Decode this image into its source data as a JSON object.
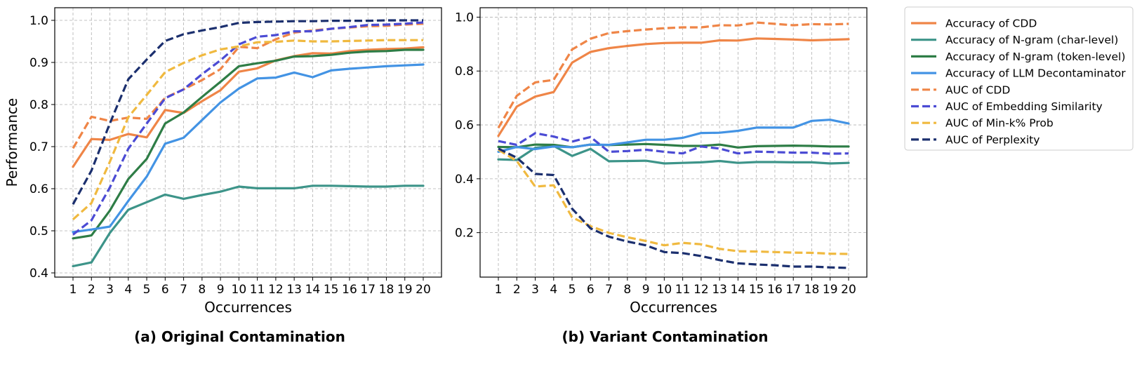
{
  "chart_data": [
    {
      "type": "line",
      "caption": "(a) Original Contamination",
      "xlabel": "Occurrences",
      "ylabel": "Performance",
      "x": [
        1,
        2,
        3,
        4,
        5,
        6,
        7,
        8,
        9,
        10,
        11,
        12,
        13,
        14,
        15,
        16,
        17,
        18,
        19,
        20
      ],
      "xticks": [
        "1",
        "2",
        "3",
        "4",
        "5",
        "6",
        "7",
        "8",
        "9",
        "10",
        "11",
        "12",
        "13",
        "14",
        "15",
        "16",
        "17",
        "18",
        "19",
        "20"
      ],
      "ylim": [
        0.39,
        1.03
      ],
      "yticks": [
        0.4,
        0.5,
        0.6,
        0.7,
        0.8,
        0.9,
        1.0
      ],
      "ytick_labels": [
        "0.4",
        "0.5",
        "0.6",
        "0.7",
        "0.8",
        "0.9",
        "1.0"
      ],
      "grid": true,
      "series": [
        {
          "name": "Accuracy of CDD",
          "color": "#ef8547",
          "style": "solid",
          "values": [
            0.652,
            0.718,
            0.716,
            0.73,
            0.722,
            0.787,
            0.78,
            0.808,
            0.834,
            0.878,
            0.886,
            0.905,
            0.915,
            0.922,
            0.921,
            0.927,
            0.93,
            0.932,
            0.933,
            0.936
          ]
        },
        {
          "name": "Accuracy of N-gram (char-level)",
          "color": "#3d9489",
          "style": "solid",
          "values": [
            0.416,
            0.425,
            0.495,
            0.55,
            0.568,
            0.586,
            0.576,
            0.585,
            0.593,
            0.605,
            0.601,
            0.601,
            0.601,
            0.607,
            0.607,
            0.606,
            0.605,
            0.605,
            0.607,
            0.607
          ]
        },
        {
          "name": "Accuracy of N-gram (token-level)",
          "color": "#2e7d46",
          "style": "solid",
          "values": [
            0.482,
            0.489,
            0.548,
            0.623,
            0.671,
            0.755,
            0.781,
            0.818,
            0.854,
            0.891,
            0.898,
            0.904,
            0.914,
            0.915,
            0.918,
            0.923,
            0.926,
            0.927,
            0.93,
            0.93
          ]
        },
        {
          "name": "Accuracy of LLM Decontaminator",
          "color": "#4393e4",
          "style": "solid",
          "values": [
            0.497,
            0.503,
            0.51,
            0.571,
            0.629,
            0.707,
            0.721,
            0.763,
            0.805,
            0.838,
            0.862,
            0.864,
            0.876,
            0.865,
            0.881,
            0.885,
            0.888,
            0.891,
            0.893,
            0.895
          ]
        },
        {
          "name": "AUC of CDD",
          "color": "#ef8547",
          "style": "dashed",
          "values": [
            0.696,
            0.771,
            0.761,
            0.769,
            0.766,
            0.816,
            0.836,
            0.858,
            0.884,
            0.937,
            0.934,
            0.955,
            0.971,
            0.976,
            0.98,
            0.983,
            0.986,
            0.987,
            0.99,
            0.992
          ]
        },
        {
          "name": "AUC of Embedding Similarity",
          "color": "#4b4bd4",
          "style": "dashed",
          "values": [
            0.491,
            0.525,
            0.603,
            0.695,
            0.755,
            0.815,
            0.836,
            0.872,
            0.905,
            0.943,
            0.961,
            0.965,
            0.974,
            0.974,
            0.98,
            0.984,
            0.989,
            0.99,
            0.992,
            0.995
          ]
        },
        {
          "name": "AUC of Min-k% Prob",
          "color": "#f0b93f",
          "style": "dashed",
          "values": [
            0.527,
            0.566,
            0.664,
            0.77,
            0.823,
            0.877,
            0.899,
            0.917,
            0.931,
            0.938,
            0.948,
            0.949,
            0.952,
            0.95,
            0.95,
            0.951,
            0.952,
            0.953,
            0.953,
            0.953
          ]
        },
        {
          "name": "AUC of Perplexity",
          "color": "#1b2f6e",
          "style": "dashed",
          "values": [
            0.563,
            0.643,
            0.755,
            0.86,
            0.907,
            0.951,
            0.967,
            0.976,
            0.984,
            0.994,
            0.996,
            0.997,
            0.998,
            0.998,
            0.999,
            0.999,
            0.999,
            1.0,
            1.0,
            1.0
          ]
        }
      ]
    },
    {
      "type": "line",
      "caption": "(b) Variant Contamination",
      "xlabel": "Occurrences",
      "ylabel": "",
      "x": [
        1,
        2,
        3,
        4,
        5,
        6,
        7,
        8,
        9,
        10,
        11,
        12,
        13,
        14,
        15,
        16,
        17,
        18,
        19,
        20
      ],
      "xticks": [
        "1",
        "2",
        "3",
        "4",
        "5",
        "6",
        "7",
        "8",
        "9",
        "10",
        "11",
        "12",
        "13",
        "14",
        "15",
        "16",
        "17",
        "18",
        "19",
        "20"
      ],
      "ylim": [
        0.035,
        1.035
      ],
      "yticks": [
        0.2,
        0.4,
        0.6,
        0.8,
        1.0
      ],
      "ytick_labels": [
        "0.2",
        "0.4",
        "0.6",
        "0.8",
        "1.0"
      ],
      "grid": true,
      "series": [
        {
          "name": "Accuracy of CDD",
          "color": "#ef8547",
          "style": "solid",
          "values": [
            0.559,
            0.668,
            0.705,
            0.722,
            0.831,
            0.871,
            0.885,
            0.893,
            0.9,
            0.904,
            0.905,
            0.905,
            0.914,
            0.913,
            0.921,
            0.919,
            0.917,
            0.914,
            0.916,
            0.918
          ]
        },
        {
          "name": "Accuracy of N-gram (char-level)",
          "color": "#3d9489",
          "style": "solid",
          "values": [
            0.472,
            0.47,
            0.515,
            0.522,
            0.485,
            0.511,
            0.465,
            0.466,
            0.467,
            0.457,
            0.459,
            0.461,
            0.466,
            0.459,
            0.462,
            0.462,
            0.461,
            0.461,
            0.457,
            0.459
          ]
        },
        {
          "name": "Accuracy of N-gram (token-level)",
          "color": "#2e7d46",
          "style": "solid",
          "values": [
            0.518,
            0.517,
            0.527,
            0.526,
            0.517,
            0.527,
            0.525,
            0.527,
            0.529,
            0.526,
            0.522,
            0.522,
            0.527,
            0.516,
            0.521,
            0.522,
            0.523,
            0.522,
            0.52,
            0.52
          ]
        },
        {
          "name": "Accuracy of LLM Decontaminator",
          "color": "#4393e4",
          "style": "solid",
          "values": [
            0.5,
            0.518,
            0.51,
            0.52,
            0.517,
            0.527,
            0.526,
            0.535,
            0.545,
            0.545,
            0.552,
            0.57,
            0.571,
            0.578,
            0.59,
            0.59,
            0.59,
            0.615,
            0.619,
            0.605
          ]
        },
        {
          "name": "AUC of CDD",
          "color": "#ef8547",
          "style": "dashed",
          "values": [
            0.589,
            0.708,
            0.758,
            0.767,
            0.88,
            0.92,
            0.941,
            0.948,
            0.954,
            0.959,
            0.962,
            0.962,
            0.97,
            0.969,
            0.98,
            0.975,
            0.97,
            0.974,
            0.973,
            0.975
          ]
        },
        {
          "name": "AUC of Embedding Similarity",
          "color": "#4b4bd4",
          "style": "dashed",
          "values": [
            0.54,
            0.526,
            0.569,
            0.557,
            0.538,
            0.555,
            0.5,
            0.503,
            0.508,
            0.5,
            0.494,
            0.52,
            0.512,
            0.494,
            0.501,
            0.499,
            0.497,
            0.497,
            0.493,
            0.494
          ]
        },
        {
          "name": "AUC of Min-k% Prob",
          "color": "#f0b93f",
          "style": "dashed",
          "values": [
            0.508,
            0.466,
            0.371,
            0.376,
            0.257,
            0.224,
            0.199,
            0.183,
            0.169,
            0.153,
            0.162,
            0.157,
            0.14,
            0.131,
            0.13,
            0.128,
            0.126,
            0.125,
            0.122,
            0.121
          ]
        },
        {
          "name": "AUC of Perplexity",
          "color": "#1b2f6e",
          "style": "dashed",
          "values": [
            0.512,
            0.478,
            0.418,
            0.414,
            0.289,
            0.216,
            0.185,
            0.167,
            0.153,
            0.128,
            0.124,
            0.113,
            0.098,
            0.086,
            0.082,
            0.079,
            0.074,
            0.074,
            0.071,
            0.069
          ]
        }
      ]
    }
  ],
  "legend": {
    "placement": "right",
    "entries": [
      {
        "label": "Accuracy of CDD",
        "color": "#ef8547",
        "style": "solid"
      },
      {
        "label": "Accuracy of N-gram (char-level)",
        "color": "#3d9489",
        "style": "solid"
      },
      {
        "label": "Accuracy of N-gram (token-level)",
        "color": "#2e7d46",
        "style": "solid"
      },
      {
        "label": "Accuracy of LLM Decontaminator",
        "color": "#4393e4",
        "style": "solid"
      },
      {
        "label": "AUC of CDD",
        "color": "#ef8547",
        "style": "dashed"
      },
      {
        "label": "AUC of Embedding Similarity",
        "color": "#4b4bd4",
        "style": "dashed"
      },
      {
        "label": "AUC of Min-k% Prob",
        "color": "#f0b93f",
        "style": "dashed"
      },
      {
        "label": "AUC of Perplexity",
        "color": "#1b2f6e",
        "style": "dashed"
      }
    ]
  }
}
